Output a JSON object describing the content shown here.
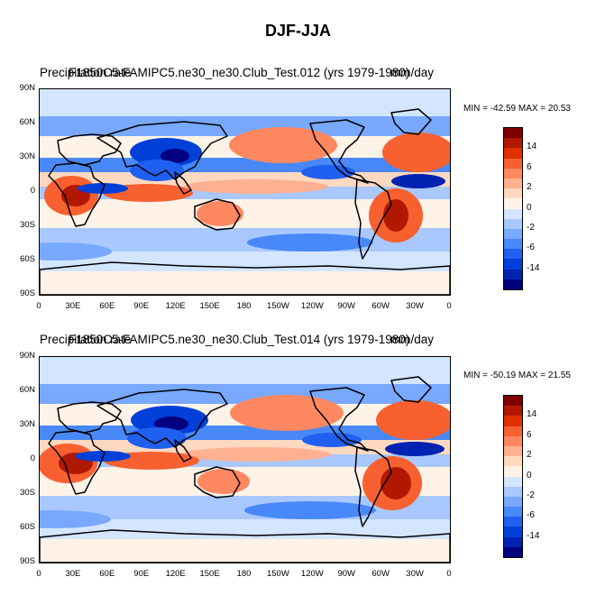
{
  "title": "DJF-JJA",
  "colors": {
    "scale": [
      "#000080",
      "#0022b0",
      "#0040d8",
      "#2060f0",
      "#4888f8",
      "#78a8ff",
      "#a8c8ff",
      "#d4e6ff",
      "#fff3e8",
      "#ffd8c0",
      "#ffb090",
      "#ff8860",
      "#f86030",
      "#e03000",
      "#b01800",
      "#800000"
    ]
  },
  "icons": {
    "map": "world-map-icon",
    "colorbar": "colorbar-icon"
  },
  "x_ticks": [
    "0",
    "30E",
    "60E",
    "90E",
    "120E",
    "150E",
    "180",
    "150W",
    "120W",
    "90W",
    "60W",
    "30W",
    "0"
  ],
  "y_ticks": [
    "90N",
    "60N",
    "30N",
    "0",
    "30S",
    "60S",
    "90S"
  ],
  "colorbar_labels": [
    "14",
    "6",
    "2",
    "0",
    "-2",
    "-6",
    "-14"
  ],
  "panels": [
    {
      "variable": "Precipitation rate",
      "case": "F1850C5-FAMIPC5.ne30_ne30.Club_Test.012 (yrs 1979-1980)",
      "units": "mm/day",
      "minmax": "MIN = -42.59 MAX =  20.53"
    },
    {
      "variable": "Precipitation rate",
      "case": "F1850C5-FAMIPC5.ne30_ne30.Club_Test.014 (yrs 1979-1980)",
      "units": "mm/day",
      "minmax": "MIN = -50.19 MAX =  21.55"
    }
  ]
}
